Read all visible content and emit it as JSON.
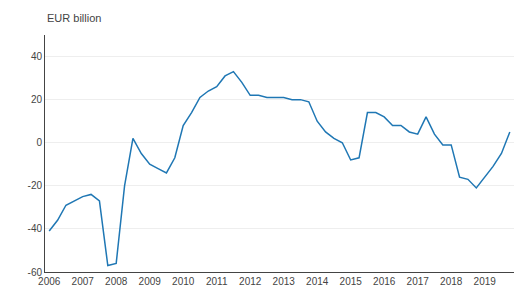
{
  "chart_data": {
    "type": "line",
    "ylabel": "EUR billion",
    "color": "#1f77b4",
    "categories": [
      "2006",
      null,
      null,
      null,
      "2007",
      null,
      null,
      null,
      "2008",
      null,
      null,
      null,
      "2009",
      null,
      null,
      null,
      "2010",
      null,
      null,
      null,
      "2011",
      null,
      null,
      null,
      "2012",
      null,
      null,
      null,
      "2013",
      null,
      null,
      null,
      "2014",
      null,
      null,
      null,
      "2015",
      null,
      null,
      null,
      "2016",
      null,
      null,
      null,
      "2017",
      null,
      null,
      null,
      "2018",
      null,
      null,
      null,
      "2019",
      null,
      null,
      null
    ],
    "values": [
      -41,
      -36,
      -29,
      -27,
      -25,
      -24,
      -27,
      -57,
      -56,
      -20,
      2,
      -5,
      -10,
      -12,
      -14,
      -7,
      8,
      14,
      21,
      24,
      26,
      31,
      33,
      28,
      22,
      22,
      21,
      21,
      21,
      20,
      20,
      19,
      10,
      5,
      2,
      0,
      -8,
      -7,
      14,
      14,
      12,
      8,
      8,
      5,
      4,
      12,
      4,
      -1,
      -1,
      -16,
      -17,
      -21,
      -16,
      -11,
      -5,
      5
    ],
    "ylim": [
      -60,
      50
    ],
    "yticks": [
      -60,
      -40,
      -20,
      0,
      20,
      40
    ],
    "grid": true
  }
}
